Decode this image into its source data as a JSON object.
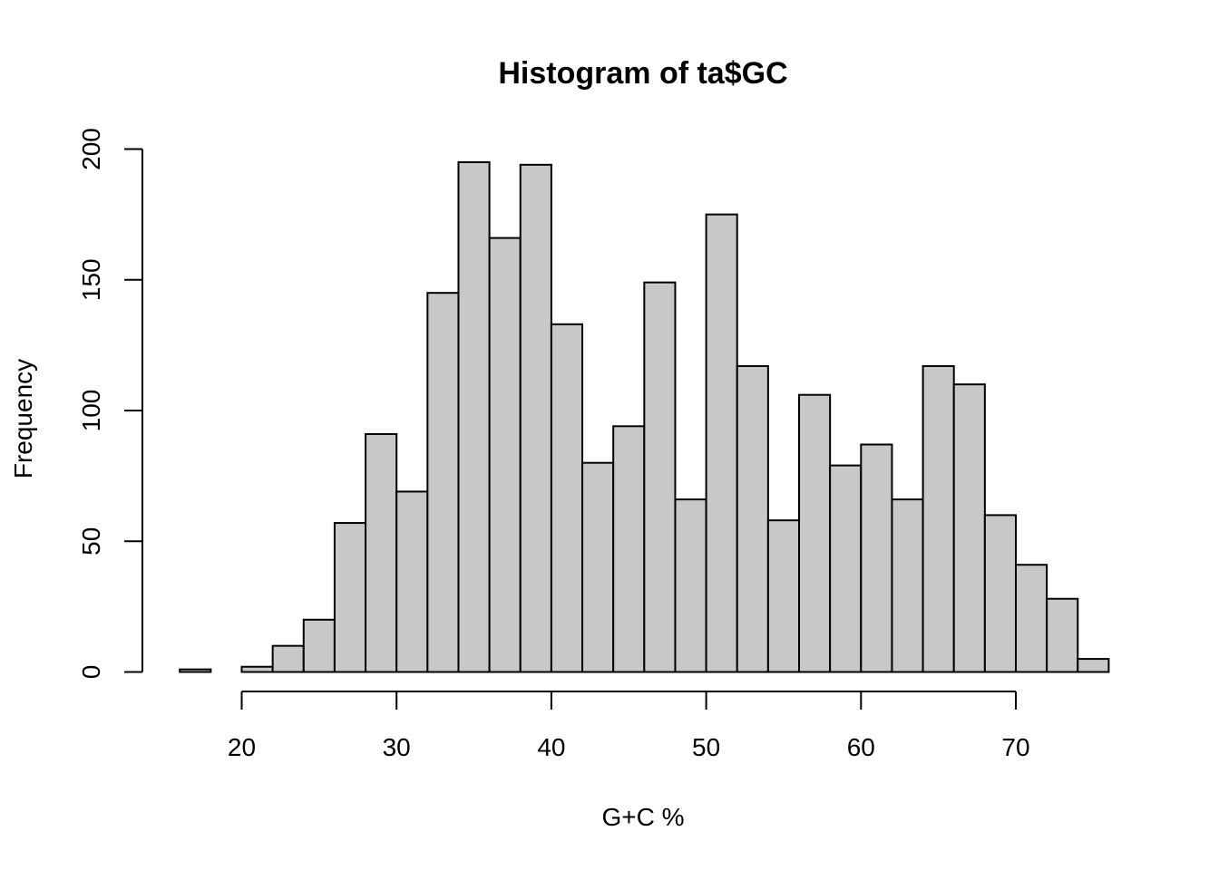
{
  "chart_data": {
    "type": "bar",
    "title": "Histogram of ta$GC",
    "xlabel": "G+C %",
    "ylabel": "Frequency",
    "bin_edges": [
      16,
      18,
      20,
      22,
      24,
      26,
      28,
      30,
      32,
      34,
      36,
      38,
      40,
      42,
      44,
      46,
      48,
      50,
      52,
      54,
      56,
      58,
      60,
      62,
      64,
      66,
      68,
      70,
      72,
      74,
      76
    ],
    "values": [
      1,
      0,
      2,
      10,
      20,
      57,
      91,
      69,
      145,
      195,
      166,
      194,
      133,
      80,
      94,
      149,
      66,
      175,
      117,
      58,
      106,
      79,
      87,
      66,
      117,
      110,
      60,
      41,
      28,
      5
    ],
    "xlim": [
      16,
      76
    ],
    "ylim": [
      0,
      200
    ],
    "x_ticks": [
      20,
      30,
      40,
      50,
      60,
      70
    ],
    "y_ticks": [
      0,
      50,
      100,
      150,
      200
    ],
    "grid": false,
    "colors": {
      "bar_fill": "#c8c8c8",
      "bar_stroke": "#000000"
    }
  }
}
